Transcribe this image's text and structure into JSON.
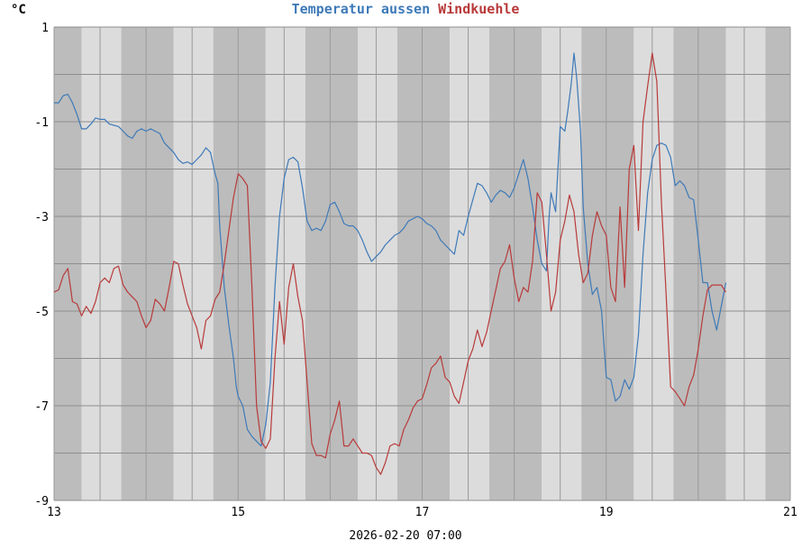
{
  "chart_data": {
    "type": "line",
    "unit": "°C",
    "footer": "2026-02-20 07:00",
    "xlim": [
      13,
      21
    ],
    "ylim": [
      -9,
      1
    ],
    "x_ticks": [
      "13",
      "15",
      "17",
      "19",
      "21"
    ],
    "y_ticks": [
      "1",
      "-1",
      "-3",
      "-5",
      "-7",
      "-9"
    ],
    "grid": true,
    "background_bands": {
      "dark": "#bcbcbc",
      "light": "#dcdcdc"
    },
    "day_night_bands": [
      [
        13.0,
        13.3,
        "dark"
      ],
      [
        13.3,
        13.73,
        "light"
      ],
      [
        13.73,
        14.3,
        "dark"
      ],
      [
        14.3,
        14.73,
        "light"
      ],
      [
        14.73,
        15.3,
        "dark"
      ],
      [
        15.3,
        15.73,
        "light"
      ],
      [
        15.73,
        16.3,
        "dark"
      ],
      [
        16.3,
        16.73,
        "light"
      ],
      [
        16.73,
        17.3,
        "dark"
      ],
      [
        17.3,
        17.73,
        "light"
      ],
      [
        17.73,
        18.3,
        "dark"
      ],
      [
        18.3,
        18.73,
        "light"
      ],
      [
        18.73,
        19.3,
        "dark"
      ],
      [
        19.3,
        19.73,
        "light"
      ],
      [
        19.73,
        20.3,
        "dark"
      ],
      [
        20.3,
        20.73,
        "light"
      ],
      [
        20.73,
        21.0,
        "dark"
      ]
    ],
    "series": [
      {
        "name": "Temperatur aussen",
        "color": "#3e7ab8",
        "points": [
          [
            13.0,
            -0.6
          ],
          [
            13.05,
            -0.6
          ],
          [
            13.1,
            -0.45
          ],
          [
            13.15,
            -0.42
          ],
          [
            13.2,
            -0.6
          ],
          [
            13.25,
            -0.85
          ],
          [
            13.3,
            -1.15
          ],
          [
            13.35,
            -1.15
          ],
          [
            13.4,
            -1.05
          ],
          [
            13.45,
            -0.92
          ],
          [
            13.5,
            -0.95
          ],
          [
            13.55,
            -0.95
          ],
          [
            13.6,
            -1.05
          ],
          [
            13.7,
            -1.1
          ],
          [
            13.75,
            -1.2
          ],
          [
            13.8,
            -1.3
          ],
          [
            13.85,
            -1.35
          ],
          [
            13.9,
            -1.2
          ],
          [
            13.95,
            -1.15
          ],
          [
            14.0,
            -1.2
          ],
          [
            14.05,
            -1.15
          ],
          [
            14.1,
            -1.2
          ],
          [
            14.15,
            -1.25
          ],
          [
            14.2,
            -1.45
          ],
          [
            14.25,
            -1.55
          ],
          [
            14.3,
            -1.65
          ],
          [
            14.35,
            -1.8
          ],
          [
            14.4,
            -1.88
          ],
          [
            14.45,
            -1.85
          ],
          [
            14.5,
            -1.9
          ],
          [
            14.55,
            -1.8
          ],
          [
            14.6,
            -1.7
          ],
          [
            14.65,
            -1.55
          ],
          [
            14.7,
            -1.65
          ],
          [
            14.75,
            -2.1
          ],
          [
            14.78,
            -2.3
          ],
          [
            14.8,
            -3.2
          ],
          [
            14.85,
            -4.5
          ],
          [
            14.9,
            -5.3
          ],
          [
            14.95,
            -6.0
          ],
          [
            14.98,
            -6.6
          ],
          [
            15.0,
            -6.8
          ],
          [
            15.05,
            -7.0
          ],
          [
            15.1,
            -7.5
          ],
          [
            15.15,
            -7.65
          ],
          [
            15.2,
            -7.75
          ],
          [
            15.25,
            -7.85
          ],
          [
            15.3,
            -7.4
          ],
          [
            15.35,
            -6.5
          ],
          [
            15.4,
            -4.5
          ],
          [
            15.45,
            -3.0
          ],
          [
            15.5,
            -2.2
          ],
          [
            15.55,
            -1.8
          ],
          [
            15.6,
            -1.75
          ],
          [
            15.65,
            -1.85
          ],
          [
            15.7,
            -2.4
          ],
          [
            15.75,
            -3.1
          ],
          [
            15.8,
            -3.3
          ],
          [
            15.85,
            -3.25
          ],
          [
            15.9,
            -3.3
          ],
          [
            15.95,
            -3.1
          ],
          [
            16.0,
            -2.75
          ],
          [
            16.05,
            -2.7
          ],
          [
            16.1,
            -2.9
          ],
          [
            16.15,
            -3.15
          ],
          [
            16.2,
            -3.2
          ],
          [
            16.25,
            -3.2
          ],
          [
            16.3,
            -3.3
          ],
          [
            16.35,
            -3.5
          ],
          [
            16.4,
            -3.75
          ],
          [
            16.45,
            -3.95
          ],
          [
            16.5,
            -3.85
          ],
          [
            16.55,
            -3.75
          ],
          [
            16.6,
            -3.6
          ],
          [
            16.65,
            -3.5
          ],
          [
            16.7,
            -3.4
          ],
          [
            16.75,
            -3.35
          ],
          [
            16.8,
            -3.25
          ],
          [
            16.85,
            -3.1
          ],
          [
            16.9,
            -3.05
          ],
          [
            16.95,
            -3.0
          ],
          [
            17.0,
            -3.05
          ],
          [
            17.05,
            -3.15
          ],
          [
            17.1,
            -3.2
          ],
          [
            17.15,
            -3.3
          ],
          [
            17.2,
            -3.5
          ],
          [
            17.25,
            -3.6
          ],
          [
            17.3,
            -3.7
          ],
          [
            17.35,
            -3.8
          ],
          [
            17.4,
            -3.3
          ],
          [
            17.45,
            -3.4
          ],
          [
            17.5,
            -3.0
          ],
          [
            17.55,
            -2.65
          ],
          [
            17.6,
            -2.3
          ],
          [
            17.65,
            -2.35
          ],
          [
            17.7,
            -2.5
          ],
          [
            17.75,
            -2.7
          ],
          [
            17.8,
            -2.55
          ],
          [
            17.85,
            -2.45
          ],
          [
            17.9,
            -2.5
          ],
          [
            17.95,
            -2.6
          ],
          [
            18.0,
            -2.4
          ],
          [
            18.05,
            -2.1
          ],
          [
            18.1,
            -1.8
          ],
          [
            18.15,
            -2.2
          ],
          [
            18.2,
            -2.8
          ],
          [
            18.25,
            -3.5
          ],
          [
            18.3,
            -4.0
          ],
          [
            18.35,
            -4.15
          ],
          [
            18.38,
            -3.0
          ],
          [
            18.4,
            -2.5
          ],
          [
            18.45,
            -2.9
          ],
          [
            18.5,
            -1.1
          ],
          [
            18.55,
            -1.2
          ],
          [
            18.58,
            -0.8
          ],
          [
            18.62,
            -0.2
          ],
          [
            18.65,
            0.45
          ],
          [
            18.68,
            -0.1
          ],
          [
            18.72,
            -1.2
          ],
          [
            18.75,
            -2.8
          ],
          [
            18.8,
            -4.0
          ],
          [
            18.85,
            -4.65
          ],
          [
            18.9,
            -4.5
          ],
          [
            18.95,
            -5.0
          ],
          [
            19.0,
            -6.4
          ],
          [
            19.05,
            -6.45
          ],
          [
            19.1,
            -6.9
          ],
          [
            19.15,
            -6.8
          ],
          [
            19.2,
            -6.45
          ],
          [
            19.25,
            -6.65
          ],
          [
            19.3,
            -6.4
          ],
          [
            19.35,
            -5.5
          ],
          [
            19.4,
            -3.8
          ],
          [
            19.45,
            -2.5
          ],
          [
            19.5,
            -1.8
          ],
          [
            19.55,
            -1.5
          ],
          [
            19.6,
            -1.45
          ],
          [
            19.65,
            -1.5
          ],
          [
            19.7,
            -1.75
          ],
          [
            19.75,
            -2.35
          ],
          [
            19.8,
            -2.25
          ],
          [
            19.85,
            -2.35
          ],
          [
            19.9,
            -2.6
          ],
          [
            19.95,
            -2.65
          ],
          [
            20.0,
            -3.5
          ],
          [
            20.05,
            -4.4
          ],
          [
            20.1,
            -4.4
          ],
          [
            20.15,
            -5.0
          ],
          [
            20.2,
            -5.4
          ],
          [
            20.25,
            -4.9
          ],
          [
            20.3,
            -4.4
          ]
        ]
      },
      {
        "name": "Windkuehle",
        "color": "#b83a3a",
        "points": [
          [
            13.0,
            -4.6
          ],
          [
            13.05,
            -4.55
          ],
          [
            13.1,
            -4.25
          ],
          [
            13.15,
            -4.1
          ],
          [
            13.2,
            -4.8
          ],
          [
            13.25,
            -4.85
          ],
          [
            13.3,
            -5.1
          ],
          [
            13.35,
            -4.9
          ],
          [
            13.4,
            -5.05
          ],
          [
            13.45,
            -4.8
          ],
          [
            13.5,
            -4.4
          ],
          [
            13.55,
            -4.3
          ],
          [
            13.6,
            -4.4
          ],
          [
            13.65,
            -4.1
          ],
          [
            13.7,
            -4.05
          ],
          [
            13.75,
            -4.45
          ],
          [
            13.8,
            -4.6
          ],
          [
            13.85,
            -4.7
          ],
          [
            13.9,
            -4.8
          ],
          [
            13.95,
            -5.1
          ],
          [
            14.0,
            -5.35
          ],
          [
            14.05,
            -5.2
          ],
          [
            14.1,
            -4.75
          ],
          [
            14.15,
            -4.85
          ],
          [
            14.2,
            -5.0
          ],
          [
            14.25,
            -4.5
          ],
          [
            14.3,
            -3.95
          ],
          [
            14.35,
            -4.0
          ],
          [
            14.4,
            -4.45
          ],
          [
            14.45,
            -4.85
          ],
          [
            14.5,
            -5.1
          ],
          [
            14.55,
            -5.35
          ],
          [
            14.6,
            -5.8
          ],
          [
            14.65,
            -5.2
          ],
          [
            14.7,
            -5.1
          ],
          [
            14.75,
            -4.75
          ],
          [
            14.8,
            -4.6
          ],
          [
            14.85,
            -4.0
          ],
          [
            14.9,
            -3.3
          ],
          [
            14.95,
            -2.6
          ],
          [
            15.0,
            -2.1
          ],
          [
            15.05,
            -2.2
          ],
          [
            15.1,
            -2.35
          ],
          [
            15.15,
            -4.5
          ],
          [
            15.2,
            -7.0
          ],
          [
            15.25,
            -7.75
          ],
          [
            15.3,
            -7.9
          ],
          [
            15.35,
            -7.7
          ],
          [
            15.4,
            -6.0
          ],
          [
            15.45,
            -4.8
          ],
          [
            15.5,
            -5.7
          ],
          [
            15.55,
            -4.5
          ],
          [
            15.6,
            -4.0
          ],
          [
            15.65,
            -4.7
          ],
          [
            15.7,
            -5.2
          ],
          [
            15.75,
            -6.5
          ],
          [
            15.8,
            -7.8
          ],
          [
            15.85,
            -8.05
          ],
          [
            15.9,
            -8.05
          ],
          [
            15.95,
            -8.1
          ],
          [
            16.0,
            -7.6
          ],
          [
            16.05,
            -7.3
          ],
          [
            16.1,
            -6.9
          ],
          [
            16.15,
            -7.85
          ],
          [
            16.2,
            -7.85
          ],
          [
            16.25,
            -7.7
          ],
          [
            16.3,
            -7.85
          ],
          [
            16.35,
            -8.0
          ],
          [
            16.4,
            -8.0
          ],
          [
            16.45,
            -8.05
          ],
          [
            16.5,
            -8.3
          ],
          [
            16.55,
            -8.45
          ],
          [
            16.6,
            -8.2
          ],
          [
            16.65,
            -7.85
          ],
          [
            16.7,
            -7.8
          ],
          [
            16.75,
            -7.85
          ],
          [
            16.8,
            -7.5
          ],
          [
            16.85,
            -7.3
          ],
          [
            16.9,
            -7.05
          ],
          [
            16.95,
            -6.9
          ],
          [
            17.0,
            -6.85
          ],
          [
            17.05,
            -6.55
          ],
          [
            17.1,
            -6.2
          ],
          [
            17.15,
            -6.1
          ],
          [
            17.2,
            -5.95
          ],
          [
            17.25,
            -6.4
          ],
          [
            17.3,
            -6.5
          ],
          [
            17.35,
            -6.8
          ],
          [
            17.4,
            -6.95
          ],
          [
            17.45,
            -6.5
          ],
          [
            17.5,
            -6.05
          ],
          [
            17.55,
            -5.8
          ],
          [
            17.6,
            -5.4
          ],
          [
            17.65,
            -5.75
          ],
          [
            17.7,
            -5.45
          ],
          [
            17.75,
            -5.0
          ],
          [
            17.8,
            -4.55
          ],
          [
            17.85,
            -4.1
          ],
          [
            17.9,
            -3.95
          ],
          [
            17.95,
            -3.6
          ],
          [
            18.0,
            -4.3
          ],
          [
            18.05,
            -4.8
          ],
          [
            18.1,
            -4.5
          ],
          [
            18.15,
            -4.6
          ],
          [
            18.2,
            -3.95
          ],
          [
            18.25,
            -2.5
          ],
          [
            18.3,
            -2.7
          ],
          [
            18.35,
            -3.8
          ],
          [
            18.4,
            -5.0
          ],
          [
            18.45,
            -4.6
          ],
          [
            18.5,
            -3.5
          ],
          [
            18.55,
            -3.1
          ],
          [
            18.6,
            -2.55
          ],
          [
            18.65,
            -2.9
          ],
          [
            18.7,
            -3.8
          ],
          [
            18.75,
            -4.4
          ],
          [
            18.8,
            -4.2
          ],
          [
            18.85,
            -3.4
          ],
          [
            18.9,
            -2.9
          ],
          [
            18.95,
            -3.2
          ],
          [
            19.0,
            -3.4
          ],
          [
            19.05,
            -4.5
          ],
          [
            19.1,
            -4.8
          ],
          [
            19.15,
            -2.8
          ],
          [
            19.2,
            -4.5
          ],
          [
            19.25,
            -2.0
          ],
          [
            19.3,
            -1.5
          ],
          [
            19.35,
            -3.3
          ],
          [
            19.4,
            -1.0
          ],
          [
            19.45,
            -0.25
          ],
          [
            19.5,
            0.45
          ],
          [
            19.55,
            -0.15
          ],
          [
            19.6,
            -2.7
          ],
          [
            19.65,
            -4.6
          ],
          [
            19.7,
            -6.6
          ],
          [
            19.75,
            -6.7
          ],
          [
            19.8,
            -6.85
          ],
          [
            19.85,
            -7.0
          ],
          [
            19.9,
            -6.6
          ],
          [
            19.95,
            -6.35
          ],
          [
            20.0,
            -5.8
          ],
          [
            20.05,
            -5.1
          ],
          [
            20.1,
            -4.55
          ],
          [
            20.15,
            -4.45
          ],
          [
            20.2,
            -4.45
          ],
          [
            20.25,
            -4.45
          ],
          [
            20.3,
            -4.6
          ]
        ]
      }
    ]
  }
}
